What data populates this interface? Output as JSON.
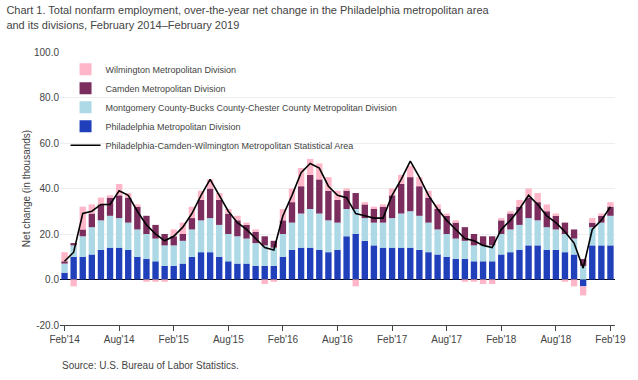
{
  "chart_data": {
    "type": "bar",
    "title": "Chart 1. Total nonfarm employment, over-the-year net change in the Philadelphia metropolitan area\nand its divisions, February 2014–February 2019",
    "ylabel": "Net change (in thousands)",
    "annotations": [
      "Source: U.S. Bureau of Labor Statistics."
    ],
    "stacked": true,
    "grid": true,
    "legend": "upper left",
    "ylim": [
      -20.0,
      100.0
    ],
    "yticks": [
      {
        "value": -20.0,
        "label": "-20.0"
      },
      {
        "value": 0.0,
        "label": "0.0"
      },
      {
        "value": 20.0,
        "label": "20.0"
      },
      {
        "value": 40.0,
        "label": "40.0"
      },
      {
        "value": 60.0,
        "label": "60.0"
      },
      {
        "value": 80.0,
        "label": "80.0"
      },
      {
        "value": 100.0,
        "label": "100.0"
      }
    ],
    "categories": [
      "Feb'14",
      null,
      null,
      null,
      null,
      null,
      "Aug'14",
      null,
      null,
      null,
      null,
      null,
      "Feb'15",
      null,
      null,
      null,
      null,
      null,
      "Aug'15",
      null,
      null,
      null,
      null,
      null,
      "Feb'16",
      null,
      null,
      null,
      null,
      null,
      "Aug'16",
      null,
      null,
      null,
      null,
      null,
      "Feb'17",
      null,
      null,
      null,
      null,
      null,
      "Aug'17",
      null,
      null,
      null,
      null,
      null,
      "Feb'18",
      null,
      null,
      null,
      null,
      null,
      "Aug'18",
      null,
      null,
      null,
      null,
      null,
      "Feb'19"
    ],
    "series": [
      {
        "name": "Philadelphia Metropolitan Division",
        "color": "#1F3FBB",
        "values": [
          3,
          10,
          10,
          11,
          13,
          14,
          14,
          13,
          10,
          9,
          8,
          6,
          6,
          7,
          10,
          12,
          12,
          10,
          8,
          7,
          7,
          6,
          6,
          6,
          10,
          13,
          14,
          14,
          13,
          12,
          13,
          19,
          20,
          17,
          15,
          14,
          14,
          14,
          14,
          13,
          12,
          11,
          10,
          9,
          9,
          8,
          8,
          8,
          11,
          12,
          13,
          15,
          15,
          13,
          13,
          12,
          11,
          -3,
          15,
          15,
          15
        ]
      },
      {
        "name": "Montgomery County-Bucks County-Chester County Metropolitan Division",
        "color": "#ADD8E6",
        "values": [
          4,
          5,
          9,
          12,
          13,
          14,
          13,
          12,
          12,
          11,
          10,
          9,
          9,
          10,
          12,
          14,
          15,
          14,
          12,
          12,
          11,
          10,
          9,
          8,
          10,
          12,
          15,
          17,
          16,
          14,
          12,
          12,
          11,
          10,
          10,
          11,
          13,
          15,
          16,
          15,
          13,
          11,
          10,
          9,
          8,
          7,
          7,
          7,
          9,
          10,
          11,
          12,
          11,
          10,
          9,
          8,
          7,
          6,
          8,
          10,
          13
        ]
      },
      {
        "name": "Camden Metropolitan Division",
        "color": "#7B2D5E",
        "values": [
          1,
          1,
          3,
          6,
          7,
          8,
          10,
          11,
          10,
          8,
          6,
          5,
          4,
          3,
          5,
          9,
          13,
          11,
          9,
          7,
          6,
          5,
          4,
          3,
          6,
          9,
          12,
          15,
          15,
          13,
          10,
          8,
          7,
          6,
          6,
          7,
          10,
          13,
          15,
          13,
          11,
          9,
          8,
          7,
          6,
          5,
          4,
          4,
          6,
          7,
          8,
          9,
          8,
          7,
          6,
          5,
          4,
          3,
          2,
          3,
          4
        ]
      },
      {
        "name": "Wilmington Metropolitan Division",
        "color": "#FFB6C8",
        "values": [
          4,
          -3,
          10,
          4,
          3,
          1,
          5,
          2,
          1,
          -1,
          -1,
          -1,
          3,
          5,
          5,
          4,
          4,
          3,
          2,
          2,
          1,
          1,
          -2,
          -1,
          5,
          6,
          8,
          7,
          7,
          6,
          4,
          1,
          -3,
          1,
          1,
          1,
          3,
          4,
          5,
          4,
          3,
          2,
          1,
          1,
          -1,
          -1,
          -2,
          -2,
          1,
          1,
          3,
          4,
          4,
          3,
          1,
          -1,
          -3,
          -4,
          2,
          1,
          2
        ]
      },
      {
        "name": "Philadelphia-Camden-Wilmington Metropolitan Statistical Area",
        "color": "#000000",
        "type": "line",
        "values": [
          8,
          12,
          29,
          30,
          33,
          33,
          39,
          37,
          30,
          24,
          20,
          17,
          19,
          23,
          29,
          37,
          44,
          37,
          30,
          25,
          22,
          18,
          14,
          13,
          28,
          37,
          47,
          51,
          49,
          41,
          37,
          36,
          29,
          28,
          27,
          27,
          37,
          44,
          52,
          45,
          37,
          31,
          26,
          22,
          18,
          17,
          15,
          14,
          22,
          26,
          31,
          37,
          33,
          28,
          25,
          21,
          16,
          5,
          22,
          26,
          32
        ]
      }
    ]
  }
}
